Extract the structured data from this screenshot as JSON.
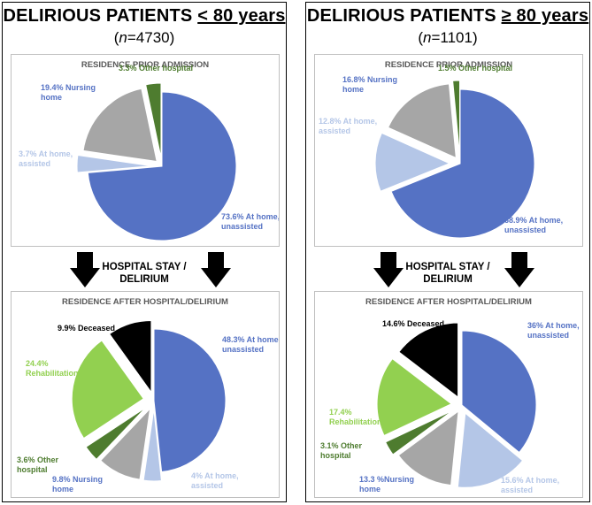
{
  "left": {
    "title_prefix": "DELIRIOUS PATIENTS ",
    "title_underlined": "< 80 years",
    "n_var": "n",
    "n_rest": "=4730",
    "stay_line1": "HOSPITAL STAY /",
    "stay_line2": "DELIRIUM"
  },
  "right": {
    "title_prefix": "DELIRIOUS PATIENTS ",
    "title_underlined": "≥ 80 years",
    "n_var": "n",
    "n_rest": "=1101",
    "stay_line1": "HOSPITAL STAY /",
    "stay_line2": "DELIRIUM"
  },
  "colors": {
    "home_unassisted": "#5572c4",
    "home_assisted": "#b4c6e7",
    "nursing_home": "#a6a6a6",
    "other_hospital": "#4e7c2f",
    "rehabilitation": "#92d050",
    "deceased": "#000000"
  },
  "chart_data": [
    {
      "type": "pie",
      "title": "RESIDENCE PRIOR ADMISSION",
      "slices": [
        {
          "label": [
            "73.6% At home,",
            "unassisted"
          ],
          "value": 73.6,
          "color": "#5572c4"
        },
        {
          "label": [
            "3.7% At home,",
            "assisted"
          ],
          "value": 3.7,
          "color": "#b4c6e7"
        },
        {
          "label": [
            "19.4% Nursing",
            "home"
          ],
          "value": 19.4,
          "color": "#a6a6a6"
        },
        {
          "label": [
            "3.3% Other hospital"
          ],
          "value": 3.3,
          "color": "#4e7c2f"
        }
      ]
    },
    {
      "type": "pie",
      "title": "RESIDENCE PRIOR ADMISSION",
      "slices": [
        {
          "label": [
            "68.9% At home,",
            "unassisted"
          ],
          "value": 68.9,
          "color": "#5572c4"
        },
        {
          "label": [
            "12.8% At home,",
            "assisted"
          ],
          "value": 12.8,
          "color": "#b4c6e7"
        },
        {
          "label": [
            "16.8% Nursing",
            "home"
          ],
          "value": 16.8,
          "color": "#a6a6a6"
        },
        {
          "label": [
            "1.5% Other hospital"
          ],
          "value": 1.5,
          "color": "#4e7c2f"
        }
      ]
    },
    {
      "type": "pie",
      "title": "RESIDENCE AFTER HOSPITAL/DELIRIUM",
      "slices": [
        {
          "label": [
            "48.3% At home,",
            "unassisted"
          ],
          "value": 48.3,
          "color": "#5572c4"
        },
        {
          "label": [
            "4% At home,",
            "assisted"
          ],
          "value": 4.0,
          "color": "#b4c6e7"
        },
        {
          "label": [
            "9.8% Nursing",
            "home"
          ],
          "value": 9.8,
          "color": "#a6a6a6"
        },
        {
          "label": [
            "3.6% Other",
            "hospital"
          ],
          "value": 3.6,
          "color": "#4e7c2f"
        },
        {
          "label": [
            "24.4%",
            "Rehabilitation"
          ],
          "value": 24.4,
          "color": "#92d050"
        },
        {
          "label": [
            "9.9% Deceased"
          ],
          "value": 9.9,
          "color": "#000000"
        }
      ]
    },
    {
      "type": "pie",
      "title": "RESIDENCE AFTER HOSPITAL/DELIRIUM",
      "slices": [
        {
          "label": [
            "36% At home,",
            "unassisted"
          ],
          "value": 36.0,
          "color": "#5572c4"
        },
        {
          "label": [
            "15.6% At home,",
            "assisted"
          ],
          "value": 15.6,
          "color": "#b4c6e7"
        },
        {
          "label": [
            "13.3 %Nursing",
            "home"
          ],
          "value": 13.3,
          "color": "#a6a6a6"
        },
        {
          "label": [
            "3.1% Other",
            "hospital"
          ],
          "value": 3.1,
          "color": "#4e7c2f"
        },
        {
          "label": [
            "17.4%",
            "Rehabilitation"
          ],
          "value": 17.4,
          "color": "#92d050"
        },
        {
          "label": [
            "14.6% Deceased"
          ],
          "value": 14.6,
          "color": "#000000"
        }
      ]
    }
  ]
}
